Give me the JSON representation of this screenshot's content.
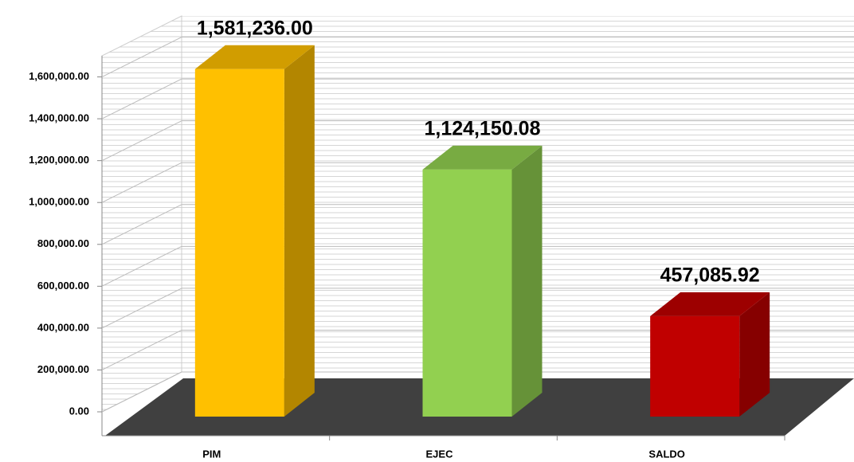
{
  "chart_data": {
    "type": "bar3d",
    "categories": [
      "PIM",
      "EJEC",
      "SALDO"
    ],
    "values": [
      1581236,
      1124150.08,
      457085.92
    ],
    "value_labels": [
      "1,581,236.00",
      "1,124,150.08",
      "457,085.92"
    ],
    "colors": [
      "#ffc000",
      "#92d050",
      "#c00000"
    ],
    "ylim": [
      0,
      1800000
    ],
    "yticks": [
      {
        "value": 0,
        "label": "0.00"
      },
      {
        "value": 200000,
        "label": "200,000.00"
      },
      {
        "value": 400000,
        "label": "400,000.00"
      },
      {
        "value": 600000,
        "label": "600,000.00"
      },
      {
        "value": 800000,
        "label": "800,000.00"
      },
      {
        "value": 1000000,
        "label": "1,000,000.00"
      },
      {
        "value": 1200000,
        "label": "1,200,000.00"
      },
      {
        "value": 1400000,
        "label": "1,400,000.00"
      },
      {
        "value": 1600000,
        "label": "1,600,000.00"
      }
    ],
    "grid": true
  }
}
